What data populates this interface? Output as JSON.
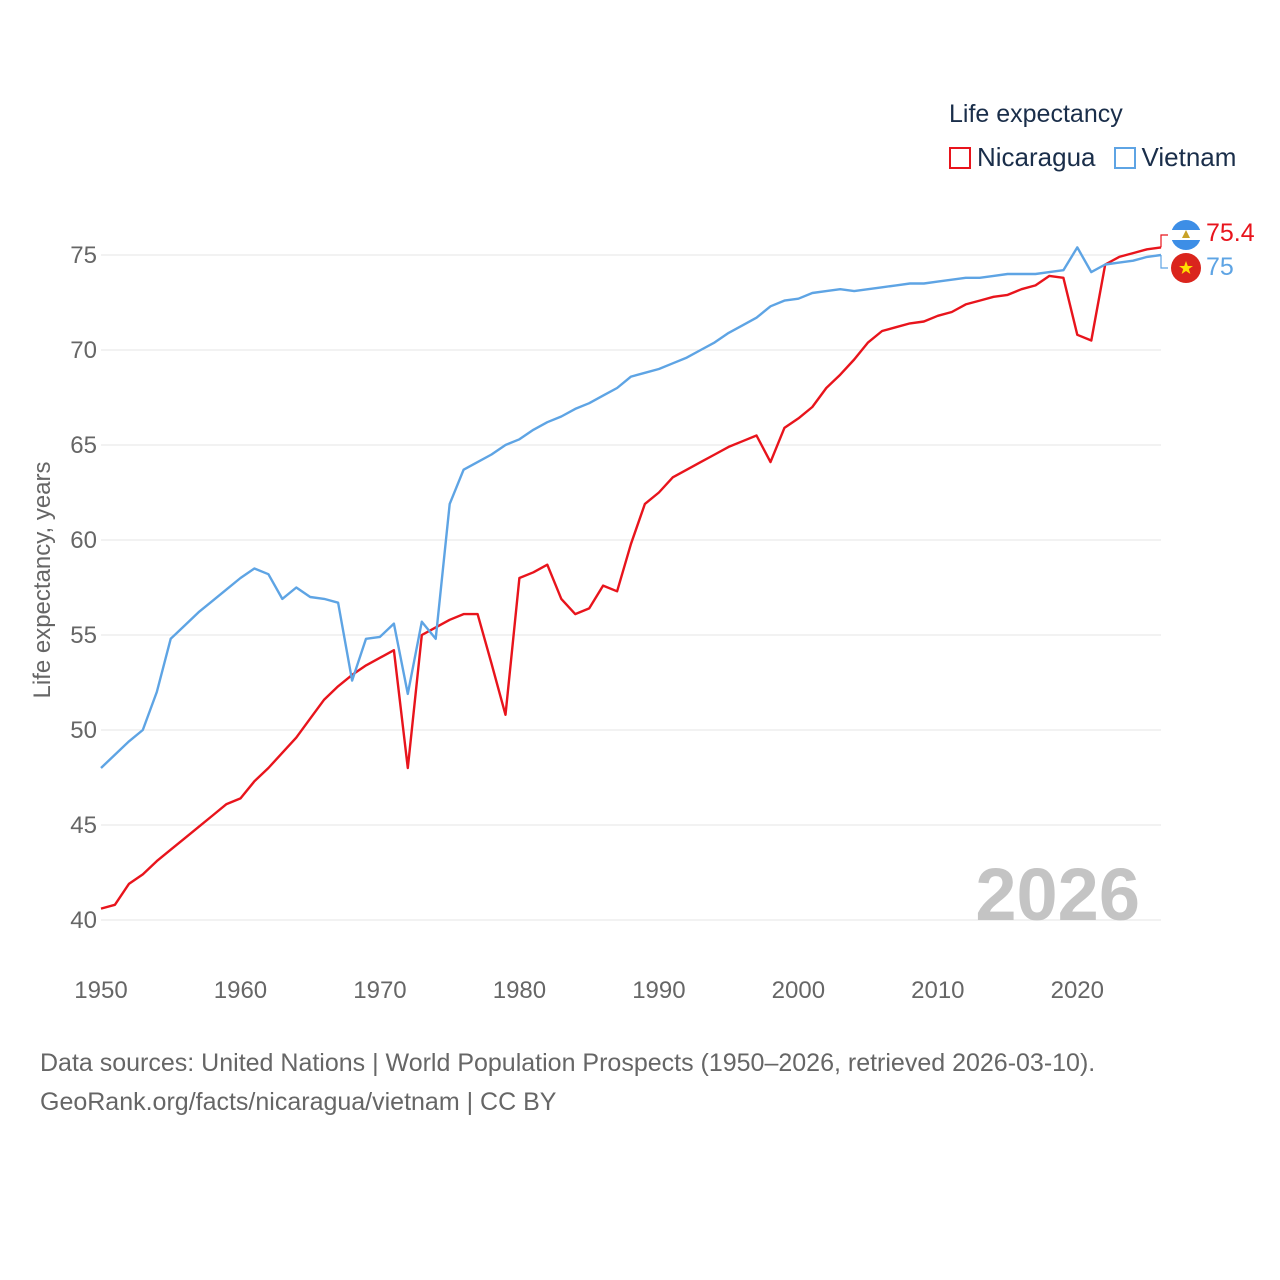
{
  "legend": {
    "title": "Life expectancy",
    "items": [
      {
        "label": "Nicaragua",
        "color": "#e8141c"
      },
      {
        "label": "Vietnam",
        "color": "#5ea4e4"
      }
    ]
  },
  "source": {
    "line1": "Data sources: United Nations | World Population Prospects (1950–2026, retrieved 2026-03-10).",
    "line2": "GeoRank.org/facts/nicaragua/vietnam | CC BY"
  },
  "chart_data": {
    "type": "line",
    "title": "Life expectancy",
    "xlabel": "",
    "ylabel": "Life expectancy, years",
    "xlim": [
      1950,
      2026
    ],
    "ylim": [
      39,
      77
    ],
    "x_ticks": [
      1950,
      1960,
      1970,
      1980,
      1990,
      2000,
      2010,
      2020
    ],
    "y_ticks": [
      40,
      45,
      50,
      55,
      60,
      65,
      70,
      75
    ],
    "year_watermark": "2026",
    "x": [
      1950,
      1951,
      1952,
      1953,
      1954,
      1955,
      1956,
      1957,
      1958,
      1959,
      1960,
      1961,
      1962,
      1963,
      1964,
      1965,
      1966,
      1967,
      1968,
      1969,
      1970,
      1971,
      1972,
      1973,
      1974,
      1975,
      1976,
      1977,
      1978,
      1979,
      1980,
      1981,
      1982,
      1983,
      1984,
      1985,
      1986,
      1987,
      1988,
      1989,
      1990,
      1991,
      1992,
      1993,
      1994,
      1995,
      1996,
      1997,
      1998,
      1999,
      2000,
      2001,
      2002,
      2003,
      2004,
      2005,
      2006,
      2007,
      2008,
      2009,
      2010,
      2011,
      2012,
      2013,
      2014,
      2015,
      2016,
      2017,
      2018,
      2019,
      2020,
      2021,
      2022,
      2023,
      2024,
      2025,
      2026
    ],
    "series": [
      {
        "name": "Nicaragua",
        "color": "#e8141c",
        "end_label": "75.4",
        "values": [
          40.6,
          40.8,
          41.9,
          42.4,
          43.1,
          43.7,
          44.3,
          44.9,
          45.5,
          46.1,
          46.4,
          47.3,
          48.0,
          48.8,
          49.6,
          50.6,
          51.6,
          52.3,
          52.9,
          53.4,
          53.8,
          54.2,
          48.0,
          55.0,
          55.4,
          55.8,
          56.1,
          56.1,
          53.5,
          50.8,
          58.0,
          58.3,
          58.7,
          56.9,
          56.1,
          56.4,
          57.6,
          57.3,
          59.8,
          61.9,
          62.5,
          63.3,
          63.7,
          64.1,
          64.5,
          64.9,
          65.2,
          65.5,
          64.1,
          65.9,
          66.4,
          67.0,
          68.0,
          68.7,
          69.5,
          70.4,
          71.0,
          71.2,
          71.4,
          71.5,
          71.8,
          72.0,
          72.4,
          72.6,
          72.8,
          72.9,
          73.2,
          73.4,
          73.9,
          73.8,
          70.8,
          70.5,
          74.5,
          74.9,
          75.1,
          75.3,
          75.4
        ]
      },
      {
        "name": "Vietnam",
        "color": "#5ea4e4",
        "end_label": "75",
        "values": [
          48.0,
          48.7,
          49.4,
          50.0,
          52.0,
          54.8,
          55.5,
          56.2,
          56.8,
          57.4,
          58.0,
          58.5,
          58.2,
          56.9,
          57.5,
          57.0,
          56.9,
          56.7,
          52.6,
          54.8,
          54.9,
          55.6,
          51.9,
          55.7,
          54.8,
          61.9,
          63.7,
          64.1,
          64.5,
          65.0,
          65.3,
          65.8,
          66.2,
          66.5,
          66.9,
          67.2,
          67.6,
          68.0,
          68.6,
          68.8,
          69.0,
          69.3,
          69.6,
          70.0,
          70.4,
          70.9,
          71.3,
          71.7,
          72.3,
          72.6,
          72.7,
          73.0,
          73.1,
          73.2,
          73.1,
          73.2,
          73.3,
          73.4,
          73.5,
          73.5,
          73.6,
          73.7,
          73.8,
          73.8,
          73.9,
          74.0,
          74.0,
          74.0,
          74.1,
          74.2,
          75.4,
          74.1,
          74.5,
          74.6,
          74.7,
          74.9,
          75.0
        ]
      }
    ]
  }
}
